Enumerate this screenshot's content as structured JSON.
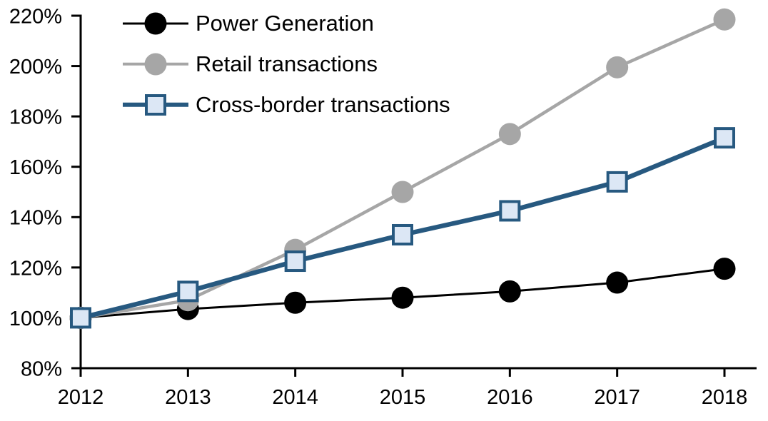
{
  "chart_data": {
    "type": "line",
    "title": "",
    "xlabel": "",
    "ylabel": "",
    "x": [
      2012,
      2013,
      2014,
      2015,
      2016,
      2017,
      2018
    ],
    "x_tick_labels": [
      "2012",
      "2013",
      "2014",
      "2015",
      "2016",
      "2017",
      "2018"
    ],
    "y_axis": {
      "min": 80,
      "max": 220,
      "tick_step": 20,
      "ticks": [
        80,
        100,
        120,
        140,
        160,
        180,
        200,
        220
      ],
      "tick_labels": [
        "80%",
        "100%",
        "120%",
        "140%",
        "160%",
        "180%",
        "200%",
        "220%"
      ],
      "format": "percent"
    },
    "grid": false,
    "legend_position": "top-left-inside",
    "series": [
      {
        "name": "Power Generation",
        "color": "#000000",
        "marker": "circle",
        "marker_fill": "#000000",
        "marker_size": 31,
        "line_width": 3,
        "values": [
          100,
          103.5,
          106,
          108,
          110.5,
          114,
          119.5
        ]
      },
      {
        "name": "Retail transactions",
        "color": "#A6A6A6",
        "marker": "circle",
        "marker_fill": "#A6A6A6",
        "marker_size": 31,
        "line_width": 4.5,
        "values": [
          100,
          107,
          127,
          150,
          173,
          199.5,
          218.5
        ]
      },
      {
        "name": "Cross-border transactions",
        "color": "#275980",
        "marker": "square",
        "marker_fill": "#DCE7F5",
        "marker_size": 30,
        "line_width": 6.5,
        "values": [
          100,
          110.5,
          122.5,
          133,
          142.5,
          154,
          171.5
        ]
      }
    ],
    "axis_color": "#000000",
    "text_color": "#000000",
    "background": "#FFFFFF"
  }
}
